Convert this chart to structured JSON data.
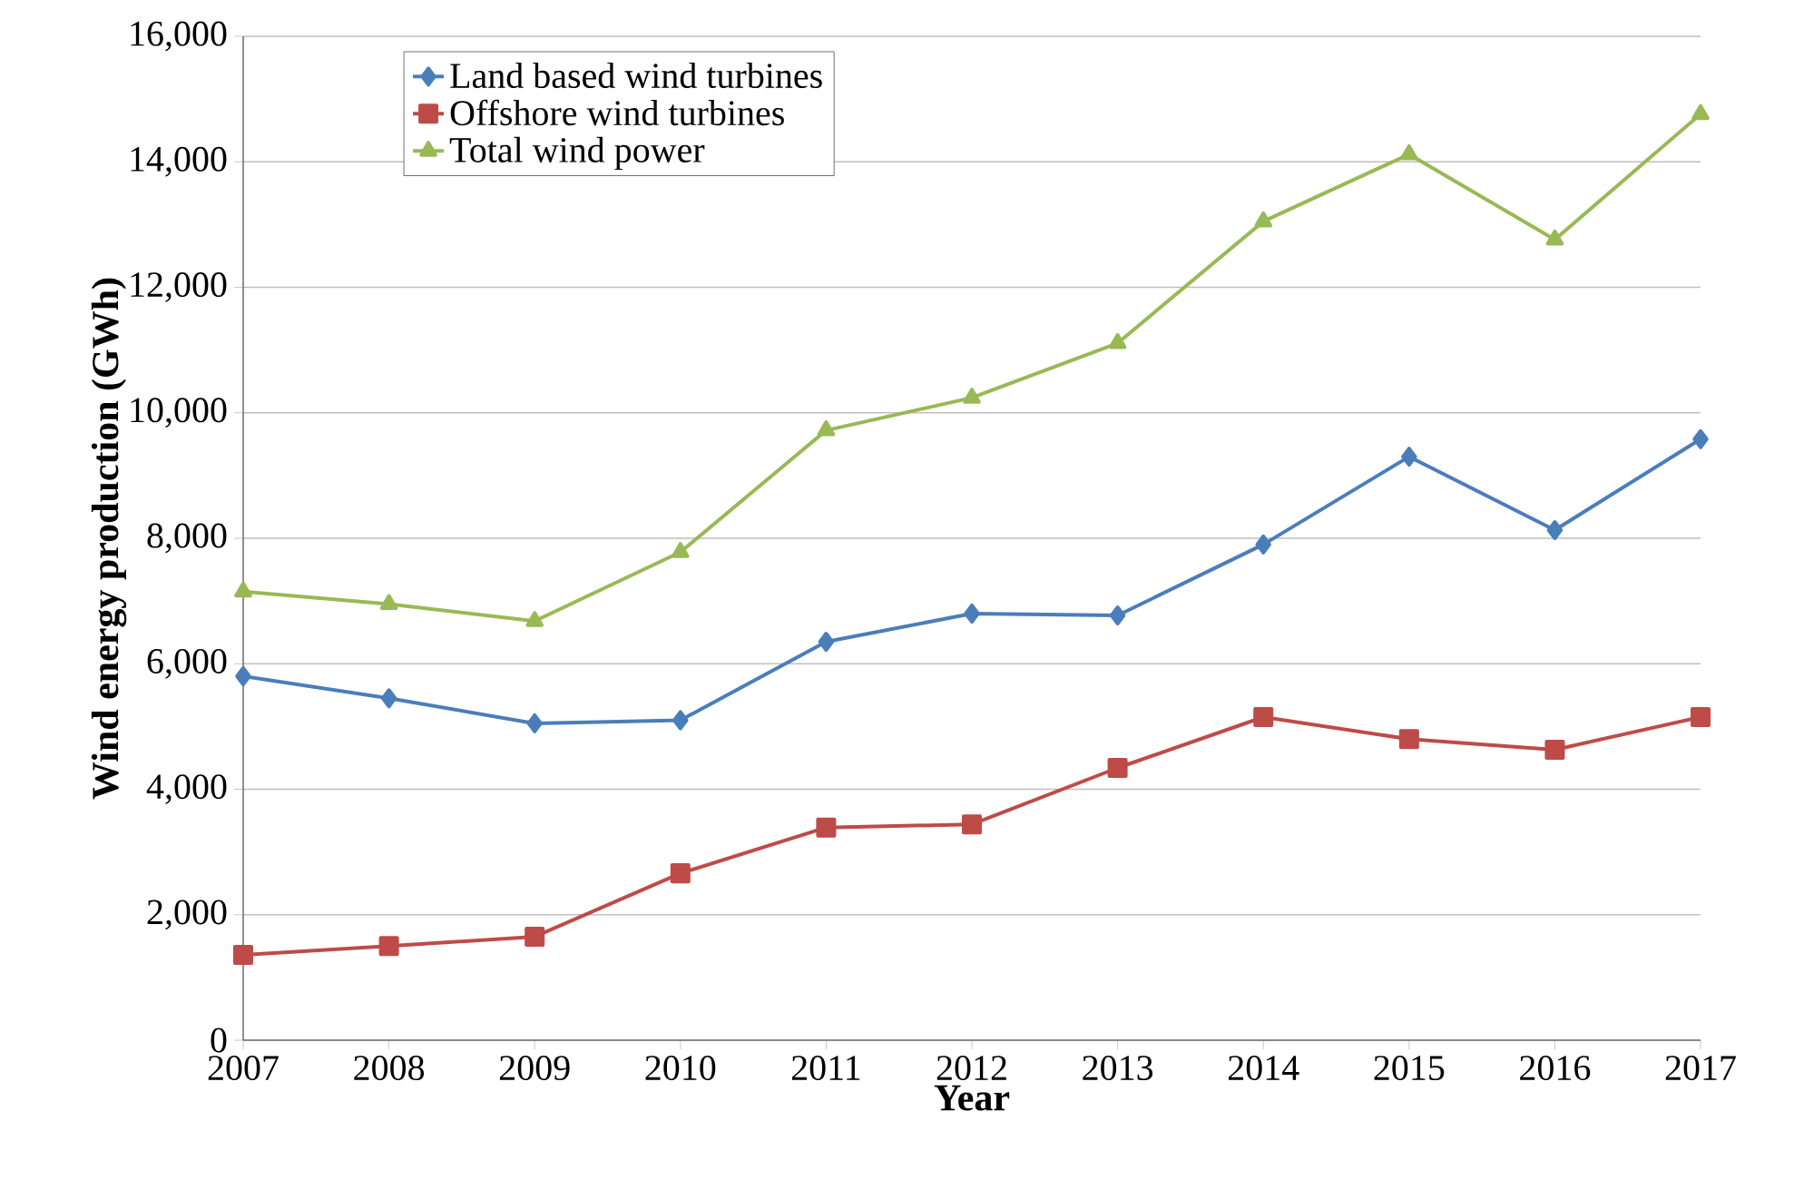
{
  "chart_data": {
    "type": "line",
    "xlabel": "Year",
    "ylabel": "Wind energy production (GWh)",
    "x": [
      2007,
      2008,
      2009,
      2010,
      2011,
      2012,
      2013,
      2014,
      2015,
      2016,
      2017
    ],
    "series": [
      {
        "name": "Land based wind turbines",
        "color": "#4a7ebb",
        "marker": "diamond",
        "values": [
          5800,
          5450,
          5050,
          5100,
          6350,
          6800,
          6770,
          7900,
          9300,
          8130,
          9580
        ]
      },
      {
        "name": "Offshore wind turbines",
        "color": "#be4b48",
        "marker": "square",
        "values": [
          1360,
          1500,
          1650,
          2660,
          3390,
          3440,
          4340,
          5150,
          4800,
          4630,
          5150
        ]
      },
      {
        "name": "Total wind power",
        "color": "#98b954",
        "marker": "triangle",
        "values": [
          7150,
          6950,
          6680,
          7780,
          9720,
          10240,
          11110,
          13050,
          14120,
          12760,
          14760
        ]
      }
    ],
    "xlim": [
      2007,
      2017
    ],
    "xticks": [
      2007,
      2008,
      2009,
      2010,
      2011,
      2012,
      2013,
      2014,
      2015,
      2016,
      2017
    ],
    "ylim": [
      0,
      16000
    ],
    "yticks": [
      0,
      {
        "value": 2000,
        "label": "2,000"
      },
      {
        "value": 4000,
        "label": "4,000"
      },
      {
        "value": 6000,
        "label": "6,000"
      },
      {
        "value": 8000,
        "label": "8,000"
      },
      {
        "value": 10000,
        "label": "10,000"
      },
      {
        "value": 12000,
        "label": "12,000"
      },
      {
        "value": 14000,
        "label": "14,000"
      },
      {
        "value": 16000,
        "label": "16,000"
      }
    ],
    "grid": "y",
    "legend": "top left",
    "line_style": "solid"
  }
}
